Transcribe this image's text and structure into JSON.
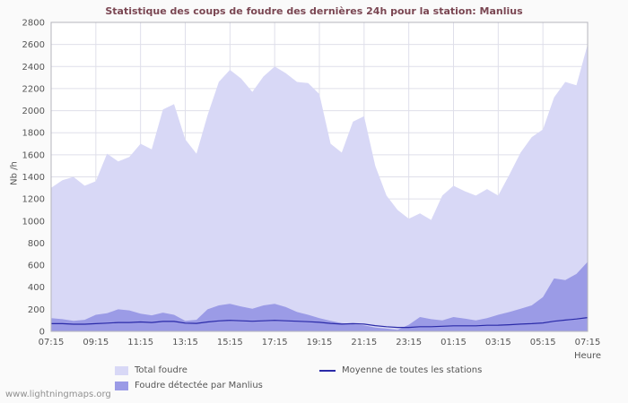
{
  "chart_data": {
    "type": "area",
    "title": "Statistique des coups de foudre des dernières 24h pour la station: Manlius",
    "xlabel": "Heure",
    "ylabel": "Nb /h",
    "ylim": [
      0,
      2800
    ],
    "y_tick_step": 200,
    "grid": true,
    "legend_position": "bottom",
    "x_ticks": [
      "07:15",
      "09:15",
      "11:15",
      "13:15",
      "15:15",
      "17:15",
      "19:15",
      "21:15",
      "23:15",
      "01:15",
      "03:15",
      "05:15",
      "07:15"
    ],
    "x": [
      "07:15",
      "07:45",
      "08:15",
      "08:45",
      "09:15",
      "09:45",
      "10:15",
      "10:45",
      "11:15",
      "11:45",
      "12:15",
      "12:45",
      "13:15",
      "13:45",
      "14:15",
      "14:45",
      "15:15",
      "15:45",
      "16:15",
      "16:45",
      "17:15",
      "17:45",
      "18:15",
      "18:45",
      "19:15",
      "19:45",
      "20:15",
      "20:45",
      "21:15",
      "21:45",
      "22:15",
      "22:45",
      "23:15",
      "23:45",
      "00:15",
      "00:45",
      "01:15",
      "01:45",
      "02:15",
      "02:45",
      "03:15",
      "03:45",
      "04:15",
      "04:45",
      "05:15",
      "05:45",
      "06:15",
      "06:45",
      "07:15"
    ],
    "series": [
      {
        "name": "Total foudre",
        "type": "area",
        "color": "#d8d8f6",
        "values": [
          1300,
          1370,
          1400,
          1320,
          1360,
          1610,
          1540,
          1580,
          1700,
          1650,
          2010,
          2060,
          1740,
          1610,
          1960,
          2260,
          2370,
          2290,
          2170,
          2310,
          2400,
          2340,
          2260,
          2250,
          2150,
          1700,
          1620,
          1900,
          1950,
          1500,
          1230,
          1100,
          1020,
          1070,
          1010,
          1230,
          1320,
          1270,
          1230,
          1290,
          1230,
          1420,
          1620,
          1760,
          1830,
          2120,
          2260,
          2230,
          2600
        ]
      },
      {
        "name": "Foudre détectée par Manlius",
        "type": "area",
        "color": "#9b9be6",
        "values": [
          120,
          110,
          95,
          105,
          150,
          165,
          200,
          190,
          160,
          145,
          170,
          150,
          95,
          105,
          200,
          235,
          250,
          225,
          205,
          235,
          250,
          220,
          175,
          150,
          120,
          95,
          75,
          65,
          55,
          35,
          25,
          15,
          60,
          130,
          110,
          100,
          130,
          115,
          100,
          120,
          150,
          175,
          205,
          235,
          310,
          480,
          465,
          520,
          630
        ]
      },
      {
        "name": "Moyenne de toutes les stations",
        "type": "line",
        "color": "#2a2aa8",
        "values": [
          70,
          70,
          65,
          65,
          70,
          75,
          80,
          80,
          85,
          80,
          90,
          90,
          75,
          72,
          85,
          95,
          100,
          96,
          92,
          96,
          100,
          96,
          92,
          88,
          82,
          72,
          66,
          70,
          66,
          52,
          42,
          36,
          36,
          42,
          42,
          46,
          50,
          50,
          50,
          55,
          56,
          60,
          66,
          70,
          76,
          92,
          102,
          112,
          125
        ]
      }
    ]
  },
  "legend": {
    "items": [
      {
        "label": "Total foudre",
        "swatch": "area",
        "color": "#d8d8f6"
      },
      {
        "label": "Moyenne de toutes les stations",
        "swatch": "line",
        "color": "#2a2aa8"
      },
      {
        "label": "Foudre détectée par Manlius",
        "swatch": "area",
        "color": "#9b9be6"
      }
    ]
  },
  "footer": {
    "watermark": "www.lightningmaps.org"
  },
  "colors": {
    "background": "#fafafa",
    "plot_background": "#ffffff",
    "grid": "#dfdfea",
    "axis": "#b4b4bc",
    "title": "#7a4652",
    "tick_text": "#555555"
  }
}
